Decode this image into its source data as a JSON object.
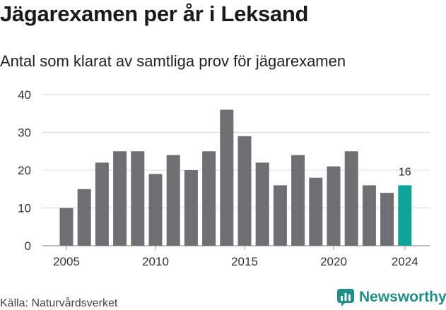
{
  "title": "Jägarexamen per år i Leksand",
  "subtitle": "Antal som klarat av samtliga prov för jägarexamen",
  "source": "Källa: Naturvårdsverket",
  "brand": "Newsworthy",
  "colors": {
    "bar": "#6f6e73",
    "highlight": "#0fa39a",
    "grid": "#d9d9d9",
    "brand": "#1f8f87"
  },
  "chart_data": {
    "type": "bar",
    "categories": [
      2005,
      2006,
      2007,
      2008,
      2009,
      2010,
      2011,
      2012,
      2013,
      2014,
      2015,
      2016,
      2017,
      2018,
      2019,
      2020,
      2021,
      2022,
      2023,
      2024
    ],
    "values": [
      10,
      15,
      22,
      25,
      25,
      19,
      24,
      20,
      25,
      36,
      29,
      22,
      16,
      24,
      18,
      21,
      25,
      16,
      14,
      16
    ],
    "highlight": 2024,
    "data_labels": [
      {
        "category": 2024,
        "text": "16"
      }
    ],
    "ylim": [
      0,
      40
    ],
    "yticks": [
      0,
      10,
      20,
      30,
      40
    ],
    "xticks": [
      2005,
      2010,
      2015,
      2020,
      2024
    ],
    "grid": "horizontal",
    "xlabel": "",
    "ylabel": ""
  }
}
